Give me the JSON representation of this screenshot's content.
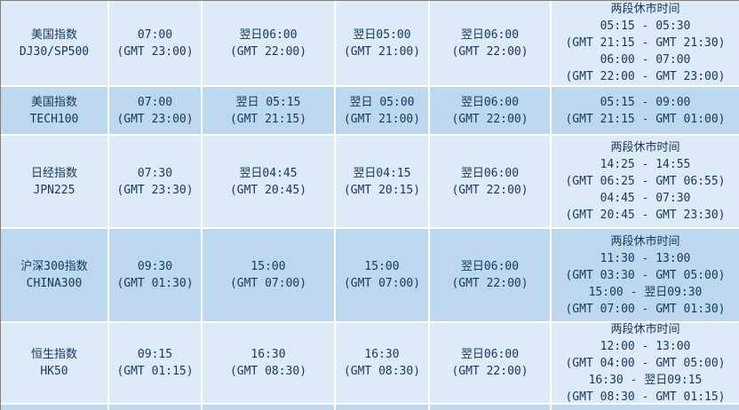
{
  "colors": {
    "row_light": "#dcebf7",
    "row_dark": "#bdd7ee",
    "grid_line": "#ffffff",
    "outer_border": "#7f7f7f",
    "text": "#17375e"
  },
  "rows": [
    {
      "index": "美国指数\nDJ30/SP500",
      "open": "07:00\n(GMT 23:00)",
      "time_a": "翌日06:00\n(GMT 22:00)",
      "time_b": "翌日05:00\n(GMT 21:00)",
      "time_c": "翌日06:00\n(GMT 22:00)",
      "breaks": "两段休市时间\n05:15 - 05:30\n(GMT 21:15 - GMT 21:30)\n06:00 - 07:00\n(GMT 22:00 - GMT 23:00)"
    },
    {
      "index": "美国指数\nTECH100",
      "open": "07:00\n(GMT 23:00)",
      "time_a": "翌日 05:15\n(GMT 21:15)",
      "time_b": "翌日 05:00\n(GMT 21:00)",
      "time_c": "翌日06:00\n(GMT 22:00)",
      "breaks": "05:15 - 09:00\n(GMT 21:15 - GMT 01:00)"
    },
    {
      "index": "日经指数\nJPN225",
      "open": "07:30\n(GMT 23:30)",
      "time_a": "翌日04:45\n(GMT 20:45)",
      "time_b": "翌日04:15\n(GMT 20:15)",
      "time_c": "翌日06:00\n(GMT 22:00)",
      "breaks": "两段休市时间\n14:25 - 14:55\n(GMT 06:25 - GMT 06:55)\n04:45 - 07:30\n(GMT 20:45 - GMT 23:30)"
    },
    {
      "index": "沪深300指数\nCHINA300",
      "open": "09:30\n(GMT 01:30)",
      "time_a": "15:00\n(GMT 07:00)",
      "time_b": "15:00\n(GMT 07:00)",
      "time_c": "翌日06:00\n(GMT 22:00)",
      "breaks": "两段休市时间\n11:30 - 13:00\n(GMT 03:30 - GMT 05:00)\n15:00 - 翌日09:30\n(GMT 07:00 - GMT 01:30)"
    },
    {
      "index": "恒生指数\nHK50",
      "open": "09:15\n(GMT 01:15)",
      "time_a": "16:30\n(GMT 08:30)",
      "time_b": "16:30\n(GMT 08:30)",
      "time_c": "翌日06:00\n(GMT 22:00)",
      "breaks": "两段休市时间\n12:00 - 13:00\n(GMT 04:00 - GMT 05:00)\n16:30 - 翌日09:15\n(GMT 08:30 - GMT 01:15)"
    }
  ]
}
